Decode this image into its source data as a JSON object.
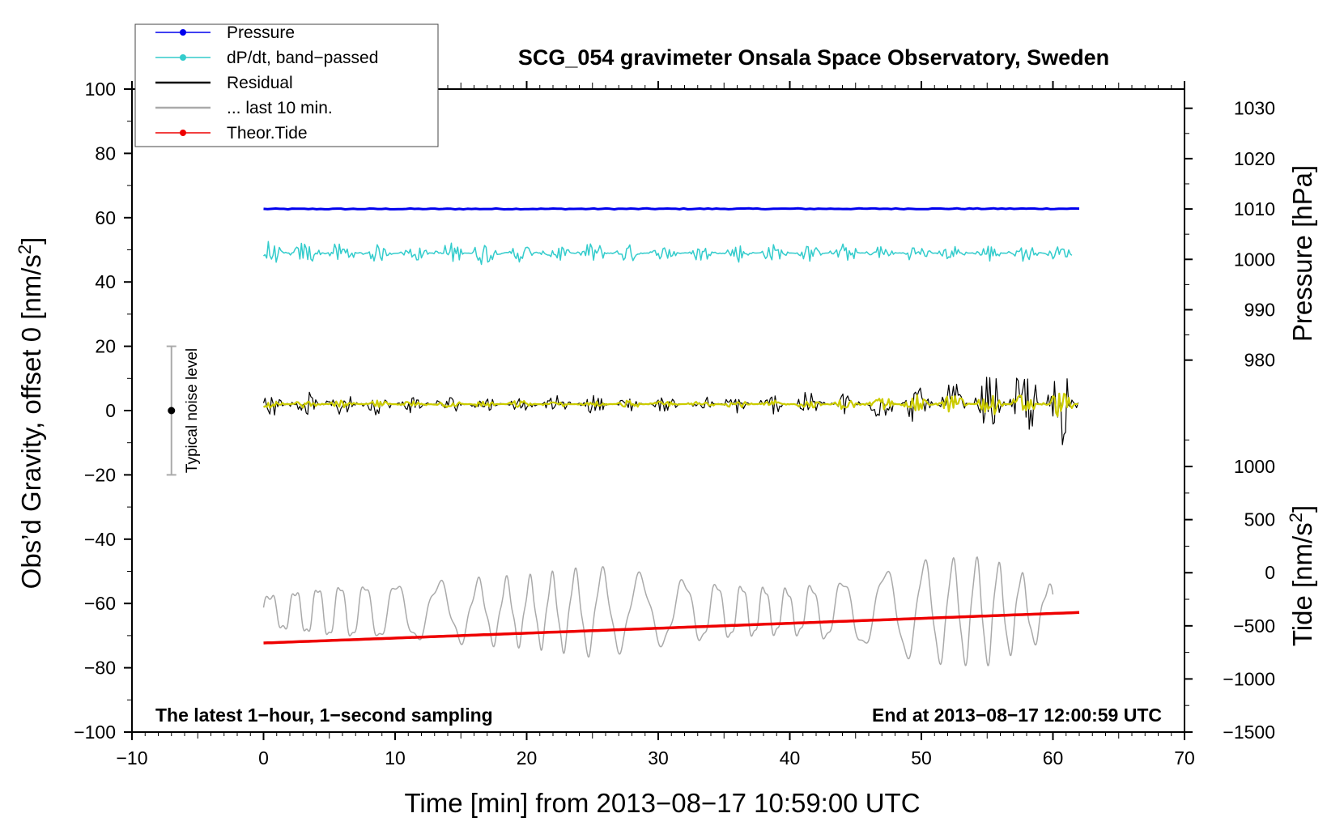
{
  "chart_data": {
    "type": "line",
    "title": "SCG_054 gravimeter Onsala Space Observatory, Sweden",
    "xlabel": "Time [min] from 2013−08−17 10:59:00 UTC",
    "ylabel": "Obs’d Gravity, offset 0 [nm/s",
    "ylabel_sup": "2",
    "ylabel_end": "]",
    "xlim": [
      -10,
      70
    ],
    "ylim": [
      -100,
      100
    ],
    "x_ticks": [
      -10,
      0,
      10,
      20,
      30,
      40,
      50,
      60,
      70
    ],
    "x_tick_labels": [
      "−10",
      "0",
      "10",
      "20",
      "30",
      "40",
      "50",
      "60",
      "70"
    ],
    "y_ticks": [
      -100,
      -80,
      -60,
      -40,
      -20,
      0,
      20,
      40,
      60,
      80,
      100
    ],
    "y_tick_labels": [
      "−100",
      "−80",
      "−60",
      "−40",
      "−20",
      "0",
      "20",
      "40",
      "60",
      "80",
      "100"
    ],
    "pressure_axis": {
      "label": "Pressure [hPa]",
      "ticks": [
        980,
        990,
        1000,
        1010,
        1020,
        1030
      ],
      "tick_labels": [
        "980",
        "990",
        "1000",
        "1010",
        "1020",
        "1030"
      ],
      "gravity_equiv": {
        "value_a": 1010,
        "g_a": 62.7,
        "value_b": 980,
        "g_b": 15.7
      }
    },
    "tide_axis": {
      "label": "Tide [nm/s",
      "label_sup": "2",
      "label_end": "]",
      "ticks": [
        -1500,
        -1000,
        -500,
        0,
        500,
        1000
      ],
      "tick_labels": [
        "−1500",
        "−1000",
        "−500",
        "0",
        "500",
        "1000"
      ],
      "gravity_equiv": {
        "value_a": 1000,
        "g_a": -17.4,
        "value_b": -1500,
        "g_b": -100
      }
    },
    "annotations": {
      "left": "The latest 1−hour, 1−second sampling",
      "right": "End at 2013−08−17 12:00:59 UTC"
    },
    "noise_bar": {
      "label": "Typical noise level",
      "x": -7,
      "center": 0,
      "low": -20,
      "high": 20
    },
    "legend": [
      {
        "label": "Pressure",
        "color": "#0000ee",
        "marker": true
      },
      {
        "label": "dP/dt, band−passed",
        "color": "#33cccc",
        "marker": true
      },
      {
        "label": "Residual",
        "color": "#000000",
        "marker": false
      },
      {
        "label": "... last 10 min.",
        "color": "#aaaaaa",
        "marker": false
      },
      {
        "label": "Theor.Tide",
        "color": "#ee0000",
        "marker": true
      }
    ],
    "series": [
      {
        "name": "Pressure",
        "color": "#0000ee",
        "kind": "flat",
        "x_range": [
          0,
          62
        ],
        "y_start": 62.7,
        "y_end": 62.8
      },
      {
        "name": "dP/dt, band−passed",
        "color": "#33cccc",
        "kind": "noise",
        "x_range": [
          0,
          61.5
        ],
        "offset": 49,
        "amp_knots": [
          [
            0,
            3.5
          ],
          [
            5,
            3
          ],
          [
            10,
            2
          ],
          [
            15,
            3.5
          ],
          [
            20,
            2.5
          ],
          [
            25,
            3
          ],
          [
            30,
            2
          ],
          [
            35,
            2.5
          ],
          [
            40,
            2.5
          ],
          [
            45,
            2.5
          ],
          [
            50,
            2
          ],
          [
            55,
            2.5
          ],
          [
            61.5,
            2
          ]
        ]
      },
      {
        "name": "Residual",
        "color": "#000000",
        "kind": "noise",
        "x_range": [
          0,
          62
        ],
        "offset": 2,
        "amp_knots": [
          [
            0,
            3
          ],
          [
            5,
            3.5
          ],
          [
            10,
            2.5
          ],
          [
            20,
            2
          ],
          [
            25,
            2.5
          ],
          [
            30,
            2
          ],
          [
            40,
            3
          ],
          [
            45,
            3.5
          ],
          [
            50,
            5
          ],
          [
            55,
            8
          ],
          [
            58,
            10
          ],
          [
            62,
            12
          ]
        ]
      },
      {
        "name": "Residual (smoothed)",
        "color": "#cccc00",
        "kind": "noise",
        "x_range": [
          0,
          62
        ],
        "offset": 2,
        "amp_knots": [
          [
            0,
            1
          ],
          [
            40,
            1
          ],
          [
            45,
            1.5
          ],
          [
            50,
            2.5
          ],
          [
            55,
            3
          ],
          [
            62,
            3.5
          ]
        ]
      },
      {
        "name": "... last 10 min.",
        "color": "#aaaaaa",
        "kind": "wave",
        "x_range": [
          0,
          60
        ],
        "offset": -62.5,
        "amp_knots": [
          [
            0,
            5
          ],
          [
            5,
            8
          ],
          [
            15,
            9
          ],
          [
            20,
            10
          ],
          [
            25,
            13
          ],
          [
            30,
            10
          ],
          [
            40,
            7
          ],
          [
            45,
            10
          ],
          [
            50,
            15
          ],
          [
            55,
            16
          ],
          [
            60,
            7
          ]
        ],
        "cycles_per_min": 0.52
      },
      {
        "name": "Theor.Tide",
        "color": "#ee0000",
        "kind": "linear",
        "x_range": [
          0,
          62
        ],
        "y_start": -72.3,
        "y_end": -62.8
      }
    ]
  }
}
